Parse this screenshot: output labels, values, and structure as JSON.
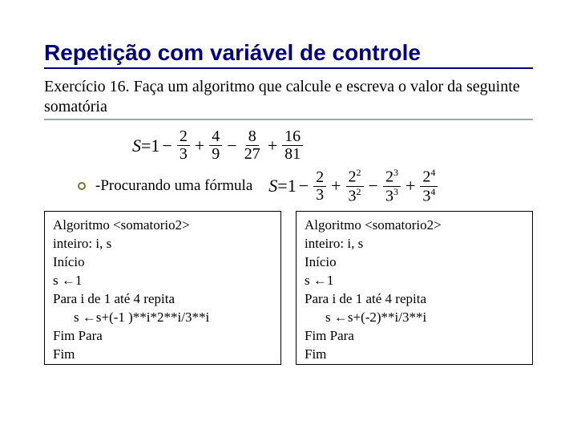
{
  "title": "Repetição com variável de controle",
  "subtitle": "Exercício 16. Faça um algoritmo que calcule e escreva o valor da seguinte somatória",
  "formula1": {
    "lhs": "S",
    "terms": [
      {
        "op": "=",
        "num": "",
        "den": "",
        "literal": "1"
      },
      {
        "op": "−",
        "num": "2",
        "den": "3"
      },
      {
        "op": "+",
        "num": "4",
        "den": "9"
      },
      {
        "op": "−",
        "num": "8",
        "den": "27"
      },
      {
        "op": "+",
        "num": "16",
        "den": "81"
      }
    ]
  },
  "procurando": "-Procurando uma fórmula",
  "formula2": {
    "lhs": "S",
    "terms": [
      {
        "op": "=",
        "literal": "1"
      },
      {
        "op": "−",
        "num": "2",
        "den": "3"
      },
      {
        "op": "+",
        "numBase": "2",
        "numExp": "2",
        "denBase": "3",
        "denExp": "2"
      },
      {
        "op": "−",
        "numBase": "2",
        "numExp": "3",
        "denBase": "3",
        "denExp": "3"
      },
      {
        "op": "+",
        "numBase": "2",
        "numExp": "4",
        "denBase": "3",
        "denExp": "4"
      }
    ]
  },
  "algo_left": {
    "l1": "Algoritmo <somatorio2>",
    "l2": "inteiro: i, s",
    "l3": "Início",
    "l4": "s ←1",
    "l5": "Para i de 1 até 4 repita",
    "l6": "s ←s+(-1 )**i*2**i/3**i",
    "l7": "Fim Para",
    "l8": "Fim"
  },
  "algo_right": {
    "l1": "Algoritmo <somatorio2>",
    "l2": "inteiro: i, s",
    "l3": "Início",
    "l4": "s ←1",
    "l5": "Para i de 1 até 4 repita",
    "l6": "s ←s+(-2)**i/3**i",
    "l7": "Fim Para",
    "l8": "Fim"
  },
  "colors": {
    "title": "#000080",
    "underline": "#9da5ae",
    "bullet": "#6b7d2c",
    "text": "#000000",
    "bg": "#ffffff"
  }
}
